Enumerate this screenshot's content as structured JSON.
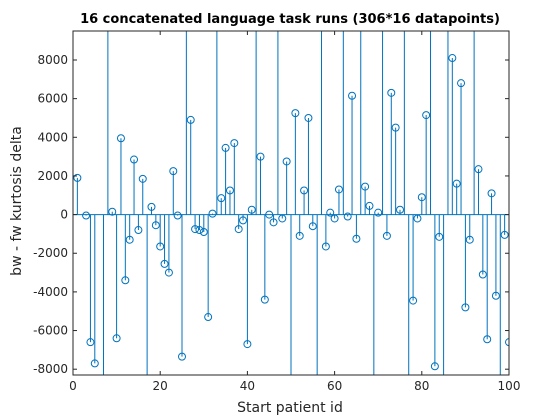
{
  "chart_data": {
    "type": "stem",
    "title": "16 concatenated language task runs (306*16 datapoints)",
    "xlabel": "Start patient id",
    "ylabel": "bw - fw kurtosis delta",
    "xlim": [
      0,
      100
    ],
    "ylim": [
      -8300,
      9500
    ],
    "xticks": [
      "0",
      "20",
      "40",
      "60",
      "80",
      "100"
    ],
    "yticks": [
      "-8000",
      "-6000",
      "-4000",
      "-2000",
      "0",
      "2000",
      "4000",
      "6000",
      "8000"
    ],
    "grid": false,
    "series": [
      {
        "x": [
          1,
          3,
          4,
          5,
          7,
          8,
          9,
          10,
          11,
          12,
          13,
          14,
          15,
          16,
          17,
          18,
          19,
          20,
          21,
          22,
          23,
          24,
          25,
          26,
          27,
          28,
          29,
          30,
          31,
          32,
          33,
          34,
          35,
          36,
          37,
          38,
          39,
          40,
          41,
          42,
          43,
          44,
          45,
          46,
          47,
          48,
          49,
          50,
          51,
          52,
          53,
          54,
          55,
          56,
          57,
          58,
          59,
          60,
          61,
          62,
          63,
          64,
          65,
          66,
          67,
          68,
          69,
          70,
          71,
          72,
          73,
          74,
          75,
          76,
          77,
          78,
          79,
          80,
          81,
          82,
          83,
          84,
          85,
          86,
          87,
          88,
          89,
          90,
          91,
          92,
          93,
          94,
          95,
          96,
          97,
          98,
          99,
          100
        ],
        "values": [
          1900,
          -50,
          -6600,
          -7700,
          -8300,
          9500,
          150,
          -6400,
          3950,
          -3400,
          -1300,
          2850,
          -800,
          1850,
          -8300,
          400,
          -550,
          -1650,
          -2550,
          -3000,
          2250,
          -50,
          -7350,
          9500,
          4900,
          -750,
          -800,
          -900,
          -5300,
          50,
          9500,
          850,
          3450,
          1250,
          3700,
          -750,
          -300,
          -6700,
          250,
          9500,
          3000,
          -4400,
          0,
          -400,
          9500,
          -200,
          2750,
          -8300,
          5250,
          -1100,
          1250,
          5000,
          -600,
          -8300,
          9500,
          -1650,
          100,
          -200,
          1300,
          9500,
          -100,
          6150,
          -1250,
          9500,
          1450,
          450,
          -8300,
          100,
          9500,
          -1100,
          6300,
          4500,
          250,
          9500,
          -8300,
          -4450,
          -200,
          900,
          5150,
          9500,
          -7850,
          -1150,
          -8300,
          9500,
          8100,
          1600,
          6800,
          -4800,
          -1300,
          9500,
          2350,
          -3100,
          -6450,
          1100,
          -4200,
          -8300,
          -1050,
          -6600
        ],
        "markers": [
          1,
          1,
          1,
          1,
          0,
          0,
          1,
          1,
          1,
          1,
          1,
          1,
          1,
          1,
          0,
          1,
          1,
          1,
          1,
          1,
          1,
          1,
          1,
          0,
          1,
          1,
          1,
          1,
          1,
          1,
          0,
          1,
          1,
          1,
          1,
          1,
          1,
          1,
          1,
          0,
          1,
          1,
          1,
          1,
          0,
          1,
          1,
          0,
          1,
          1,
          1,
          1,
          1,
          0,
          0,
          1,
          1,
          1,
          1,
          0,
          1,
          1,
          1,
          0,
          1,
          1,
          0,
          1,
          0,
          1,
          1,
          1,
          1,
          0,
          0,
          1,
          1,
          1,
          1,
          0,
          1,
          1,
          0,
          0,
          1,
          1,
          1,
          1,
          1,
          0,
          1,
          1,
          1,
          1,
          1,
          0,
          1,
          1
        ]
      }
    ]
  }
}
